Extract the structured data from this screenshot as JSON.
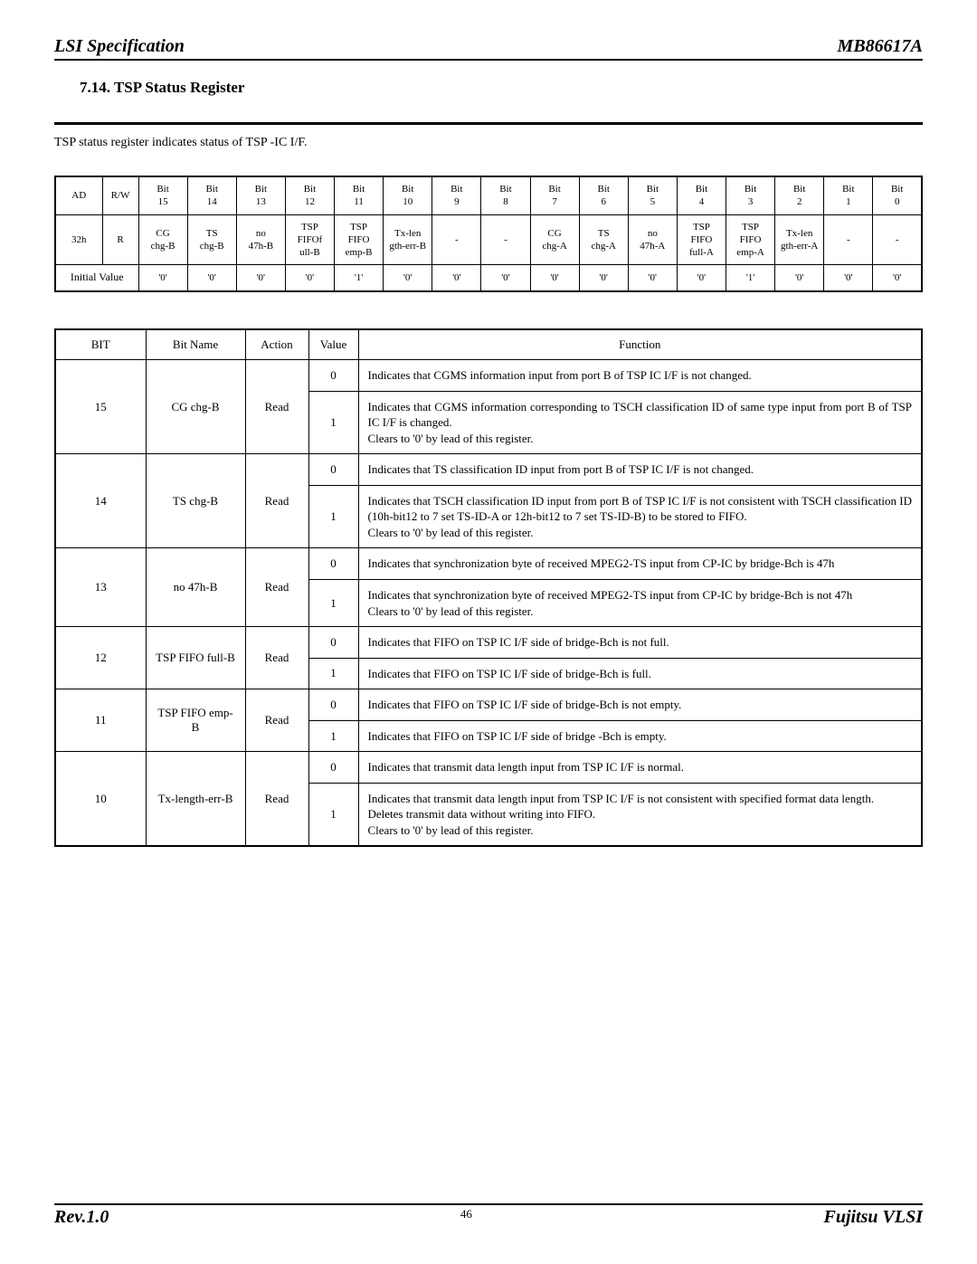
{
  "header": {
    "left": "LSI Specification",
    "right": "MB86617A"
  },
  "section_title": "7.14. TSP Status Register",
  "intro": "TSP status register indicates status of TSP -IC I/F.",
  "register_table": {
    "head1": [
      "AD",
      "R/W",
      "Bit 15",
      "Bit 14",
      "Bit 13",
      "Bit 12",
      "Bit 11",
      "Bit 10",
      "Bit 9",
      "Bit 8",
      "Bit 7",
      "Bit 6",
      "Bit 5",
      "Bit 4",
      "Bit 3",
      "Bit 2",
      "Bit 1",
      "Bit 0"
    ],
    "row": [
      "32h",
      "R",
      "CG chg-B",
      "TS chg-B",
      "no 47h-B",
      "TSP FIFOf ull-B",
      "TSP FIFO emp-B",
      "Tx-len gth-err-B",
      "-",
      "-",
      "CG chg-A",
      "TS chg-A",
      "no 47h-A",
      "TSP FIFO full-A",
      "TSP FIFO emp-A",
      "Tx-len gth-err-A",
      "-",
      "-"
    ],
    "initial_label": "Initial Value",
    "initial": [
      "'0'",
      "'0'",
      "'0'",
      "'0'",
      "'1'",
      "'0'",
      "'0'",
      "'0'",
      "'0'",
      "'0'",
      "'0'",
      "'0'",
      "'1'",
      "'0'",
      "'0'",
      "'0'"
    ]
  },
  "detail_table": {
    "headers": [
      "BIT",
      "Bit Name",
      "Action",
      "Value",
      "Function"
    ],
    "rows": [
      {
        "bit": "15",
        "name": "CG chg-B",
        "action": "Read",
        "vals": [
          {
            "v": "0",
            "f": "Indicates that CGMS information input from port B of TSP IC I/F is not changed."
          },
          {
            "v": "1",
            "f": "Indicates that CGMS information corresponding to TSCH classification ID of same type input from port B of TSP IC I/F is changed.\nClears to '0' by lead of this register."
          }
        ]
      },
      {
        "bit": "14",
        "name": "TS chg-B",
        "action": "Read",
        "vals": [
          {
            "v": "0",
            "f": "Indicates that TS classification ID input from port B of TSP IC I/F is not changed."
          },
          {
            "v": "1",
            "f": "Indicates that TSCH classification ID input from port B of TSP IC I/F is not consistent with TSCH classification ID (10h-bit12 to 7 set TS-ID-A or 12h-bit12 to 7 set TS-ID-B) to be stored to FIFO.\nClears to '0' by lead of this register."
          }
        ]
      },
      {
        "bit": "13",
        "name": "no 47h-B",
        "action": "Read",
        "vals": [
          {
            "v": "0",
            "f": "Indicates that synchronization byte of received MPEG2-TS input from CP-IC by bridge-Bch is 47h"
          },
          {
            "v": "1",
            "f": "Indicates that synchronization byte of received MPEG2-TS input from CP-IC by bridge-Bch is not 47h\nClears to '0' by lead of this register."
          }
        ]
      },
      {
        "bit": "12",
        "name": "TSP FIFO full-B",
        "action": "Read",
        "vals": [
          {
            "v": "0",
            "f": "Indicates that FIFO on TSP IC I/F side of bridge-Bch is not full."
          },
          {
            "v": "1",
            "f": "Indicates that FIFO on TSP IC I/F side of bridge-Bch is full."
          }
        ]
      },
      {
        "bit": "11",
        "name": "TSP FIFO emp-B",
        "action": "Read",
        "vals": [
          {
            "v": "0",
            "f": "Indicates that FIFO on TSP IC I/F side of bridge-Bch is not empty."
          },
          {
            "v": "1",
            "f": "Indicates that FIFO on TSP IC I/F side of bridge -Bch is empty."
          }
        ]
      },
      {
        "bit": "10",
        "name": "Tx-length-err-B",
        "action": "Read",
        "vals": [
          {
            "v": "0",
            "f": "Indicates that transmit data length input from TSP IC I/F is normal."
          },
          {
            "v": "1",
            "f": "Indicates that transmit data length input from TSP IC I/F is not consistent with specified format data length.\nDeletes transmit data without writing into FIFO.\nClears to '0' by lead of this register."
          }
        ]
      }
    ]
  },
  "footer": {
    "left": "Rev.1.0",
    "page": "46",
    "right": "Fujitsu VLSI"
  },
  "widths": {
    "register_first": "52px",
    "register_second": "40px",
    "detail": [
      "100px",
      "110px",
      "70px",
      "55px",
      "auto"
    ]
  }
}
